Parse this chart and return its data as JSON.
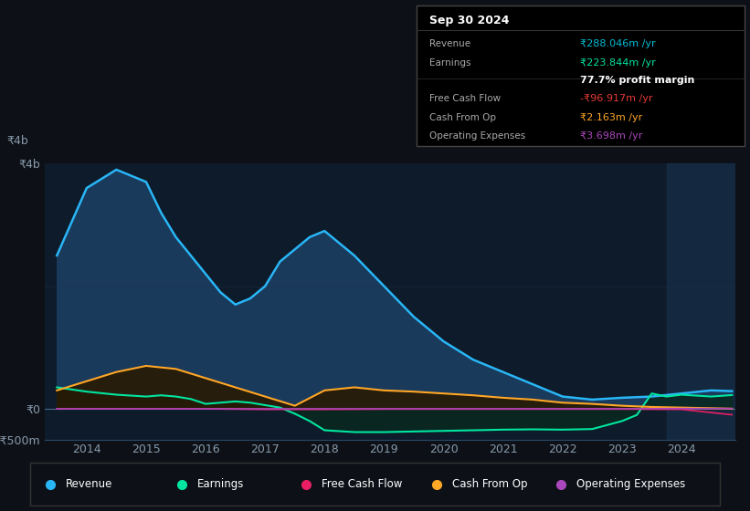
{
  "bg_color": "#0d1117",
  "plot_bg_color": "#0d1b2a",
  "title_date": "Sep 30 2024",
  "info_box_rows": [
    {
      "label": "Revenue",
      "value": "₹288.046m /yr",
      "value_color": "#00bcd4",
      "has_sep_above": false
    },
    {
      "label": "Earnings",
      "value": "₹223.844m /yr",
      "value_color": "#00e5a0",
      "has_sep_above": false
    },
    {
      "label": "",
      "value": "77.7% profit margin",
      "value_color": "#ffffff",
      "has_sep_above": false
    },
    {
      "label": "Free Cash Flow",
      "value": "-₹96.917m /yr",
      "value_color": "#e53935",
      "has_sep_above": true
    },
    {
      "label": "Cash From Op",
      "value": "₹2.163m /yr",
      "value_color": "#ffa726",
      "has_sep_above": false
    },
    {
      "label": "Operating Expenses",
      "value": "₹3.698m /yr",
      "value_color": "#ab47bc",
      "has_sep_above": false
    }
  ],
  "ylim": [
    -500,
    4000
  ],
  "ytick_labels": [
    "-₹500m",
    "₹0",
    "₹4b"
  ],
  "ytick_values": [
    -500,
    0,
    4000
  ],
  "xlabel_years": [
    "2014",
    "2015",
    "2016",
    "2017",
    "2018",
    "2019",
    "2020",
    "2021",
    "2022",
    "2023",
    "2024"
  ],
  "xlim": [
    2013.3,
    2024.9
  ],
  "series": {
    "Revenue": {
      "color": "#29b6f6",
      "fill_color": "#1a3a5c",
      "x": [
        2013.5,
        2014.0,
        2014.5,
        2014.75,
        2015.0,
        2015.25,
        2015.5,
        2015.75,
        2016.0,
        2016.25,
        2016.5,
        2016.75,
        2017.0,
        2017.25,
        2017.5,
        2017.75,
        2018.0,
        2018.5,
        2019.0,
        2019.5,
        2020.0,
        2020.5,
        2021.0,
        2021.5,
        2022.0,
        2022.5,
        2023.0,
        2023.5,
        2024.0,
        2024.5,
        2024.85
      ],
      "y": [
        2500,
        3600,
        3900,
        3800,
        3700,
        3200,
        2800,
        2500,
        2200,
        1900,
        1700,
        1800,
        2000,
        2400,
        2600,
        2800,
        2900,
        2500,
        2000,
        1500,
        1100,
        800,
        600,
        400,
        200,
        150,
        180,
        200,
        250,
        300,
        288
      ]
    },
    "Earnings": {
      "color": "#00e5a0",
      "fill_color": "#0a2820",
      "x": [
        2013.5,
        2014.0,
        2014.5,
        2015.0,
        2015.25,
        2015.5,
        2015.75,
        2016.0,
        2016.25,
        2016.5,
        2016.75,
        2017.0,
        2017.25,
        2017.5,
        2017.75,
        2018.0,
        2018.5,
        2019.0,
        2019.5,
        2020.0,
        2020.5,
        2021.0,
        2021.5,
        2022.0,
        2022.5,
        2023.0,
        2023.25,
        2023.5,
        2023.75,
        2024.0,
        2024.5,
        2024.85
      ],
      "y": [
        350,
        280,
        230,
        200,
        220,
        200,
        160,
        80,
        100,
        120,
        100,
        60,
        20,
        -80,
        -200,
        -350,
        -380,
        -380,
        -370,
        -360,
        -350,
        -340,
        -335,
        -340,
        -330,
        -200,
        -100,
        250,
        200,
        230,
        200,
        224
      ]
    },
    "Free Cash Flow": {
      "color": "#e91e63",
      "x": [
        2013.5,
        2014.0,
        2015.0,
        2016.0,
        2017.0,
        2018.0,
        2019.0,
        2020.0,
        2021.0,
        2022.0,
        2023.0,
        2024.0,
        2024.85
      ],
      "y": [
        0,
        0,
        0,
        0,
        -10,
        -10,
        -5,
        -5,
        -5,
        -5,
        -5,
        -10,
        -97
      ]
    },
    "Cash From Op": {
      "color": "#ffa726",
      "fill_color": "#2a1800",
      "x": [
        2013.5,
        2014.0,
        2014.5,
        2015.0,
        2015.5,
        2016.0,
        2016.5,
        2017.0,
        2017.5,
        2018.0,
        2018.5,
        2019.0,
        2019.5,
        2020.0,
        2020.5,
        2021.0,
        2021.5,
        2022.0,
        2022.5,
        2023.0,
        2023.5,
        2024.0,
        2024.5,
        2024.85
      ],
      "y": [
        300,
        450,
        600,
        700,
        650,
        500,
        350,
        200,
        50,
        300,
        350,
        300,
        280,
        250,
        220,
        180,
        150,
        100,
        80,
        50,
        30,
        20,
        10,
        2
      ]
    },
    "Operating Expenses": {
      "color": "#ab47bc",
      "x": [
        2013.5,
        2014.0,
        2015.0,
        2016.0,
        2017.0,
        2018.0,
        2019.0,
        2020.0,
        2021.0,
        2022.0,
        2023.0,
        2024.0,
        2024.85
      ],
      "y": [
        0,
        0,
        0,
        0,
        0,
        0,
        0,
        0,
        0,
        0,
        0,
        5,
        4
      ]
    }
  },
  "legend_items": [
    {
      "label": "Revenue",
      "color": "#29b6f6"
    },
    {
      "label": "Earnings",
      "color": "#00e5a0"
    },
    {
      "label": "Free Cash Flow",
      "color": "#e91e63"
    },
    {
      "label": "Cash From Op",
      "color": "#ffa726"
    },
    {
      "label": "Operating Expenses",
      "color": "#ab47bc"
    }
  ]
}
